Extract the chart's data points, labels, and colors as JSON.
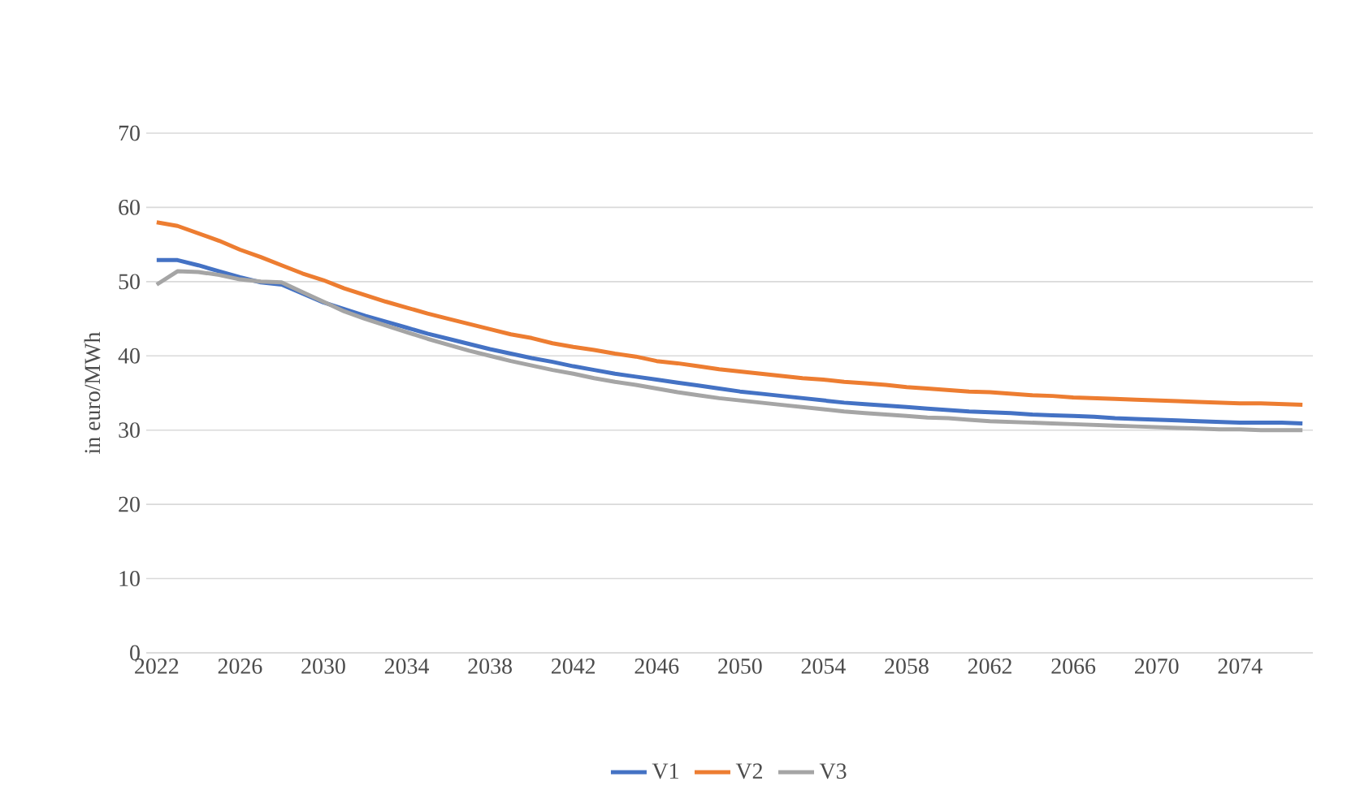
{
  "chart_data": {
    "type": "line",
    "ylabel": "in euro/MWh",
    "categories": [
      "2022",
      null,
      null,
      null,
      "2026",
      null,
      null,
      null,
      "2030",
      null,
      null,
      null,
      "2034",
      null,
      null,
      null,
      "2038",
      null,
      null,
      null,
      "2042",
      null,
      null,
      null,
      "2046",
      null,
      null,
      null,
      "2050",
      null,
      null,
      null,
      "2054",
      null,
      null,
      null,
      "2058",
      null,
      null,
      null,
      "2062",
      null,
      null,
      null,
      "2066",
      null,
      null,
      null,
      "2070",
      null,
      null,
      null,
      "2074",
      null,
      null,
      null
    ],
    "ylim": [
      0,
      70
    ],
    "yticks": [
      0,
      10,
      20,
      30,
      40,
      50,
      60,
      70
    ],
    "grid": "y",
    "legend": "bottom",
    "series": [
      {
        "name": "V1",
        "color": "#4472c4",
        "values": [
          52.9,
          52.9,
          52.2,
          51.4,
          50.6,
          49.9,
          49.6,
          48.4,
          47.2,
          46.3,
          45.4,
          44.6,
          43.8,
          43.0,
          42.3,
          41.6,
          40.9,
          40.3,
          39.7,
          39.2,
          38.6,
          38.1,
          37.6,
          37.2,
          36.8,
          36.4,
          36.0,
          35.6,
          35.2,
          34.9,
          34.6,
          34.3,
          34.0,
          33.7,
          33.5,
          33.3,
          33.1,
          32.9,
          32.7,
          32.5,
          32.4,
          32.3,
          32.1,
          32.0,
          31.9,
          31.8,
          31.6,
          31.5,
          31.4,
          31.3,
          31.2,
          31.1,
          31.0,
          31.0,
          31.0,
          30.9
        ]
      },
      {
        "name": "V2",
        "color": "#ed7d31",
        "values": [
          58.0,
          57.5,
          56.5,
          55.5,
          54.3,
          53.3,
          52.2,
          51.1,
          50.2,
          49.1,
          48.2,
          47.3,
          46.5,
          45.7,
          45.0,
          44.3,
          43.6,
          42.9,
          42.4,
          41.7,
          41.2,
          40.8,
          40.3,
          39.9,
          39.3,
          39.0,
          38.6,
          38.2,
          37.9,
          37.6,
          37.3,
          37.0,
          36.8,
          36.5,
          36.3,
          36.1,
          35.8,
          35.6,
          35.4,
          35.2,
          35.1,
          34.9,
          34.7,
          34.6,
          34.4,
          34.3,
          34.2,
          34.1,
          34.0,
          33.9,
          33.8,
          33.7,
          33.6,
          33.6,
          33.5,
          33.4
        ]
      },
      {
        "name": "V3",
        "color": "#a5a5a5",
        "values": [
          49.6,
          51.4,
          51.3,
          50.9,
          50.3,
          50.0,
          49.9,
          48.6,
          47.3,
          46.0,
          45.0,
          44.1,
          43.2,
          42.3,
          41.5,
          40.7,
          40.0,
          39.3,
          38.7,
          38.1,
          37.6,
          37.0,
          36.5,
          36.1,
          35.6,
          35.1,
          34.7,
          34.3,
          34.0,
          33.7,
          33.4,
          33.1,
          32.8,
          32.5,
          32.3,
          32.1,
          31.9,
          31.7,
          31.6,
          31.4,
          31.2,
          31.1,
          31.0,
          30.9,
          30.8,
          30.7,
          30.6,
          30.5,
          30.4,
          30.3,
          30.2,
          30.1,
          30.1,
          30.0,
          30.0,
          30.0
        ]
      }
    ]
  }
}
